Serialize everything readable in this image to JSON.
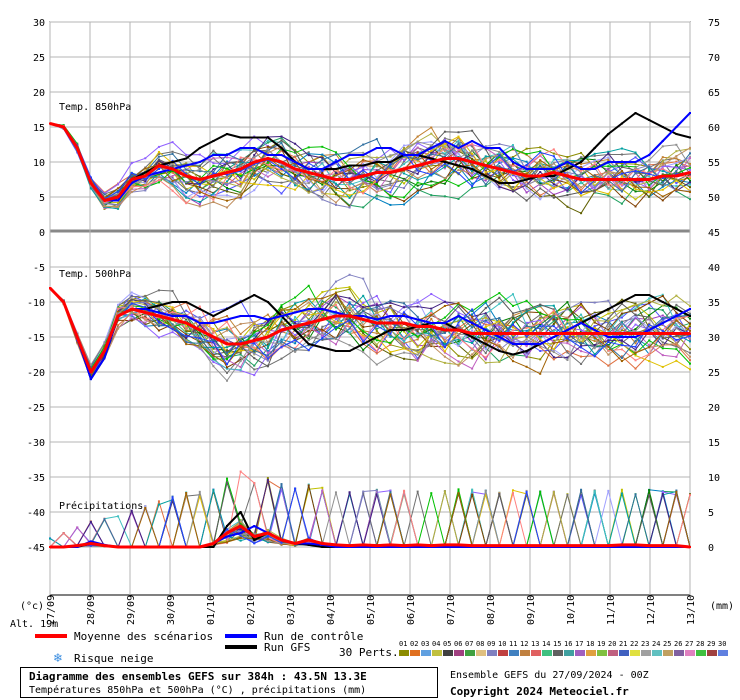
{
  "chart_data": {
    "type": "line",
    "dates": [
      "28/09",
      "29/09",
      "30/09",
      "01/10",
      "02/10",
      "03/10",
      "04/10",
      "05/10",
      "06/10",
      "07/10",
      "08/10",
      "09/10",
      "10/10",
      "11/10",
      "12/10",
      "13/10"
    ],
    "extra_date_label": "27/09",
    "left_axis_ticks": [
      30,
      25,
      20,
      15,
      10,
      5,
      0,
      -5,
      -10,
      -15,
      -20,
      -25,
      -30,
      -35,
      -40,
      -45
    ],
    "right_axis_top_ticks": [
      75,
      70,
      65,
      60,
      55,
      50,
      45
    ],
    "right_axis_bottom_ticks": [
      40,
      35,
      30,
      25,
      20,
      15,
      10,
      5,
      0
    ],
    "left_unit": "(°c)",
    "right_unit": "(mm)",
    "altitude": "Alt. 19m",
    "panel_labels": {
      "t850": "Temp. 850hPa",
      "t500": "Temp. 500hPa",
      "precip": "Précipitations"
    },
    "series": [
      {
        "name": "Moyenne des scénarios",
        "color": "#ff0000",
        "t850": [
          15.5,
          15,
          12,
          7,
          4.5,
          5,
          7.5,
          8,
          9.5,
          9,
          8,
          7.5,
          8,
          8.5,
          9,
          10,
          10.5,
          10,
          9,
          8.5,
          8,
          7.5,
          7.5,
          8,
          8.5,
          8.5,
          9,
          9.5,
          10,
          10.5,
          10.5,
          10,
          9.5,
          9,
          8.5,
          8,
          8,
          8.5,
          8,
          7.5,
          7.5,
          7.5,
          7.5,
          7.5,
          7.5,
          8,
          8,
          8.5
        ],
        "t500": [
          -8,
          -10,
          -15,
          -20,
          -17,
          -12,
          -11,
          -11.5,
          -12,
          -12.5,
          -13,
          -14,
          -15,
          -16,
          -16,
          -15.5,
          -15,
          -14,
          -13.5,
          -13,
          -12.5,
          -12,
          -12,
          -12.5,
          -13,
          -13,
          -13,
          -13.5,
          -13.5,
          -14,
          -14,
          -14.5,
          -14.5,
          -14.5,
          -14.5,
          -14.5,
          -14.5,
          -14.5,
          -14.5,
          -14.5,
          -14.5,
          -14.5,
          -14.5,
          -14.5,
          -14.5,
          -14.5,
          -14.5,
          -14.5
        ],
        "precip_mm": [
          0,
          0,
          0.2,
          0.5,
          0.2,
          0,
          0,
          0,
          0,
          0,
          0,
          0,
          0.5,
          2,
          3,
          1.5,
          2,
          1,
          0.5,
          1,
          0.5,
          0.3,
          0.2,
          0.3,
          0.2,
          0.3,
          0.2,
          0.3,
          0.2,
          0.3,
          0.3,
          0.2,
          0.2,
          0.2,
          0.2,
          0.2,
          0.2,
          0.2,
          0.2,
          0.2,
          0.2,
          0.2,
          0.3,
          0.3,
          0.2,
          0.2,
          0.2,
          0
        ]
      },
      {
        "name": "Run de contrôle",
        "color": "#0000ff",
        "t850": [
          15.5,
          15,
          12,
          7,
          4.5,
          4.5,
          7,
          8,
          8.5,
          9,
          9.5,
          10,
          11,
          11,
          12,
          12,
          11,
          11,
          10,
          9,
          9,
          10,
          11,
          11,
          12,
          12,
          11,
          11,
          12,
          13,
          12,
          13,
          12,
          12,
          10,
          9,
          9,
          9,
          10,
          9,
          9,
          10,
          10,
          10,
          11,
          13,
          15,
          17
        ],
        "t500": [
          -8,
          -10,
          -15,
          -21,
          -18,
          -12,
          -11,
          -11,
          -11.5,
          -12,
          -12,
          -13,
          -13,
          -12.5,
          -12,
          -12,
          -12.5,
          -12,
          -11.5,
          -11,
          -11,
          -11.5,
          -12,
          -12,
          -12.5,
          -12,
          -12,
          -12.5,
          -13,
          -13,
          -12,
          -13,
          -14,
          -15,
          -16,
          -16,
          -16,
          -15,
          -14,
          -13,
          -14,
          -15,
          -15,
          -15,
          -14,
          -13,
          -12,
          -11
        ],
        "precip_mm": [
          0,
          0,
          0,
          0.8,
          0.3,
          0,
          0,
          0,
          0,
          0,
          0,
          0,
          0.5,
          1.5,
          2,
          3,
          2,
          1,
          0.5,
          0.5,
          0.3,
          0,
          0,
          0,
          0,
          0,
          0,
          0,
          0,
          0,
          0,
          0,
          0,
          0,
          0,
          0,
          0,
          0,
          0,
          0,
          0,
          0,
          0,
          0,
          0,
          0,
          0,
          0
        ]
      },
      {
        "name": "Run GFS",
        "color": "#000000",
        "t850": [
          15.5,
          15,
          12,
          7,
          4.5,
          4.5,
          7.5,
          8.5,
          9.5,
          10,
          10.5,
          12,
          13,
          14,
          13.5,
          13.5,
          13.5,
          12,
          10,
          9,
          9,
          9,
          9.5,
          9.5,
          10,
          10,
          11,
          11,
          10.5,
          10,
          9.5,
          9,
          8,
          7,
          7,
          7.5,
          8,
          8,
          9,
          10,
          12,
          14,
          15.5,
          17,
          16,
          15,
          14,
          13.5
        ],
        "t500": [
          -8,
          -10,
          -15,
          -21,
          -18,
          -12,
          -11,
          -11,
          -10.5,
          -10,
          -10,
          -11,
          -12,
          -11,
          -10,
          -9,
          -10,
          -12,
          -14,
          -16,
          -16.5,
          -17,
          -17,
          -16,
          -15,
          -14,
          -14,
          -13.5,
          -13,
          -13,
          -14,
          -15,
          -16,
          -17,
          -17.5,
          -17,
          -16,
          -15,
          -14,
          -13,
          -12,
          -11,
          -10,
          -9,
          -9,
          -10,
          -11,
          -12
        ],
        "precip_mm": [
          0,
          0,
          0,
          0.5,
          0.2,
          0,
          0,
          0,
          0,
          0,
          0,
          0,
          0,
          3,
          5,
          1,
          2,
          1,
          0.5,
          0.3,
          0,
          0,
          0,
          0,
          0,
          0,
          0,
          0,
          0,
          0,
          0,
          0,
          0,
          0,
          0,
          0,
          0,
          0,
          0,
          0,
          0,
          0,
          0,
          0,
          0,
          0,
          0,
          0
        ]
      }
    ],
    "member_colors": [
      "#6e6e6e",
      "#8c8c00",
      "#5050ff",
      "#c08030",
      "#20a060",
      "#a040c0",
      "#0080c0",
      "#c0c000",
      "#606000",
      "#e07040",
      "#008000",
      "#707070",
      "#a0a0ff",
      "#9060ff",
      "#40c0c0",
      "#804000",
      "#c060c0",
      "#00a0a0",
      "#b0b040",
      "#402080",
      "#e0c000",
      "#00c000",
      "#8080c0",
      "#c09060",
      "#5a5a5a",
      "#ff8080",
      "#3070a0",
      "#a06000",
      "#909090",
      "#2040ff"
    ]
  },
  "legend": {
    "mean": "Moyenne des scénarios",
    "control": "Run de contrôle",
    "gfs": "Run GFS",
    "snow": "Risque neige",
    "perts": "30 Perts.",
    "pert_numbers": [
      "01",
      "02",
      "03",
      "04",
      "05",
      "06",
      "07",
      "08",
      "09",
      "10",
      "11",
      "12",
      "13",
      "14",
      "15",
      "16",
      "17",
      "18",
      "19",
      "20",
      "21",
      "22",
      "23",
      "24",
      "25",
      "26",
      "27",
      "28",
      "29",
      "30"
    ],
    "pert_colors": [
      "#8c8c00",
      "#e07020",
      "#60a0e0",
      "#c0c040",
      "#404040",
      "#a04080",
      "#40a040",
      "#e0c080",
      "#8080c0",
      "#c04040",
      "#4080c0",
      "#c08040",
      "#e06060",
      "#40c080",
      "#606060",
      "#40a0a0",
      "#a060c0",
      "#e0a040",
      "#80c040",
      "#c06080",
      "#4060c0",
      "#e0e040",
      "#a0a0a0",
      "#60c0c0",
      "#c0a060",
      "#8060a0",
      "#e080c0",
      "#40c040",
      "#a04040",
      "#6080e0"
    ]
  },
  "footer": {
    "title": "Diagramme des ensembles GEFS sur 384h : 43.5N 13.3E",
    "subtitle": "Températures 850hPa et 500hPa (°C) , précipitations (mm)",
    "run_info": "Ensemble GEFS du 27/09/2024 - 00Z",
    "copyright": "Copyright 2024 Meteociel.fr"
  }
}
